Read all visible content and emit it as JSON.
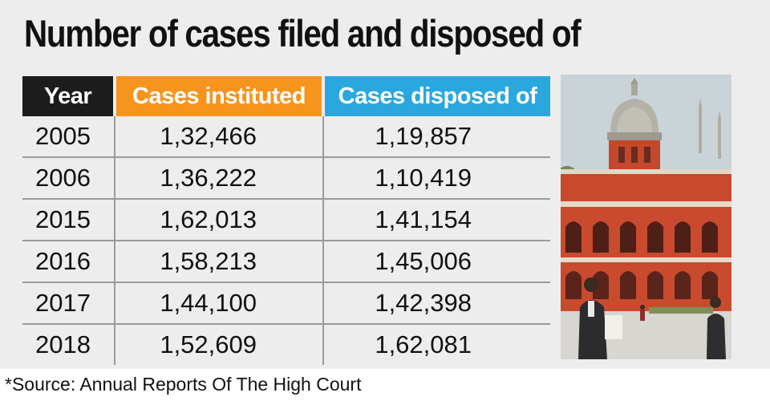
{
  "title": "Number of cases filed and disposed of",
  "chart_data": {
    "type": "table",
    "title": "Number of cases filed and disposed of",
    "columns": [
      "Year",
      "Cases instituted",
      "Cases disposed of"
    ],
    "rows": [
      [
        "2005",
        "1,32,466",
        "1,19,857"
      ],
      [
        "2006",
        "1,36,222",
        "1,10,419"
      ],
      [
        "2015",
        "1,62,013",
        "1,41,154"
      ],
      [
        "2016",
        "1,58,213",
        "1,45,006"
      ],
      [
        "2017",
        "1,44,100",
        "1,42,398"
      ],
      [
        "2018",
        "1,52,609",
        "1,62,081"
      ]
    ],
    "header_colors": [
      "#1c1c1c",
      "#f7941d",
      "#29a8e0"
    ]
  },
  "source": "*Source: Annual Reports Of The High Court",
  "photo": {
    "icon": "court-building-photo",
    "colors": {
      "sky": "#c9d3d8",
      "brick": "#c8492c",
      "dome": "#b4b1a8"
    }
  }
}
